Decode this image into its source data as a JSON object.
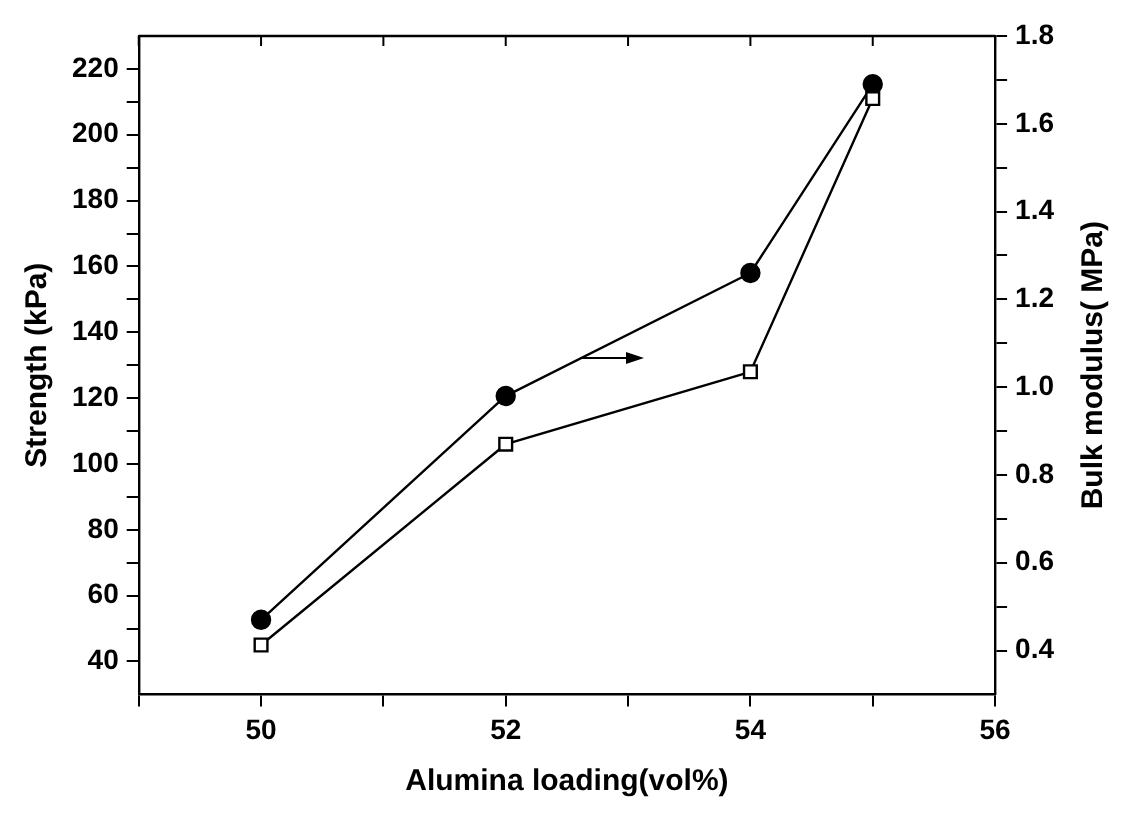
{
  "chart_data": {
    "type": "line",
    "xlabel": "Alumina loading(vol%)",
    "ylabel": "Strength (kPa)",
    "y2label": "Bulk modulus( MPa)",
    "x": [
      50,
      52,
      54,
      55
    ],
    "series": [
      {
        "color": "#000000",
        "marker": "square",
        "values": [
          45,
          106,
          128,
          211
        ]
      },
      {
        "color": "#000000",
        "marker": "circle",
        "axis": "y2",
        "values": [
          0.47,
          0.98,
          1.26,
          1.69
        ]
      }
    ],
    "xlim": [
      49,
      56
    ],
    "xticks": [
      {
        "value": 49,
        "label": null
      },
      50,
      {
        "value": 51,
        "label": null
      },
      52,
      {
        "value": 53,
        "label": null
      },
      54,
      {
        "value": 55,
        "label": null
      },
      56
    ],
    "ylim": [
      30,
      230
    ],
    "yticks": [
      40,
      {
        "value": 50,
        "label": null
      },
      60,
      {
        "value": 70,
        "label": null
      },
      80,
      {
        "value": 90,
        "label": null
      },
      100,
      {
        "value": 110,
        "label": null
      },
      120,
      {
        "value": 130,
        "label": null
      },
      140,
      {
        "value": 150,
        "label": null
      },
      160,
      {
        "value": 170,
        "label": null
      },
      180,
      {
        "value": 190,
        "label": null
      },
      200,
      {
        "value": 210,
        "label": null
      },
      220
    ],
    "y2lim": [
      0.3,
      1.8
    ],
    "y2ticks": [
      {
        "value": 0.4,
        "label": "0.4"
      },
      {
        "value": 0.5,
        "label": null
      },
      {
        "value": 0.6,
        "label": "0.6"
      },
      {
        "value": 0.7,
        "label": null
      },
      {
        "value": 0.8,
        "label": "0.8"
      },
      {
        "value": 0.9,
        "label": null
      },
      {
        "value": 1.0,
        "label": "1.0"
      },
      {
        "value": 1.1,
        "label": null
      },
      {
        "value": 1.2,
        "label": "1.2"
      },
      {
        "value": 1.3,
        "label": null
      },
      {
        "value": 1.4,
        "label": "1.4"
      },
      {
        "value": 1.5,
        "label": null
      },
      {
        "value": 1.6,
        "label": "1.6"
      },
      {
        "value": 1.7,
        "label": null
      },
      {
        "value": 1.8,
        "label": "1.8"
      }
    ],
    "grid": false,
    "legend": false,
    "line_style": "solid"
  }
}
